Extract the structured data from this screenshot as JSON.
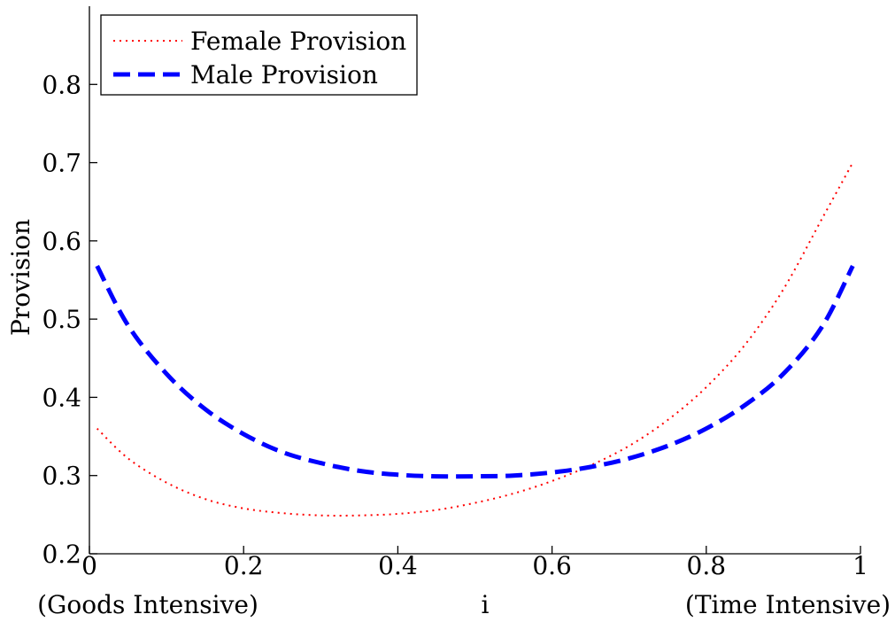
{
  "chart_data": {
    "type": "line",
    "title": "",
    "xlabel": "i",
    "ylabel": "Provision",
    "x_end_labels": {
      "left": "(Goods Intensive)",
      "right": "(Time Intensive)"
    },
    "xlim": [
      0,
      1
    ],
    "ylim": [
      0.2,
      0.9
    ],
    "xticks": [
      "0",
      "0.2",
      "0.4",
      "0.6",
      "0.8",
      "1"
    ],
    "yticks": [
      "0.2",
      "0.3",
      "0.4",
      "0.5",
      "0.6",
      "0.7",
      "0.8"
    ],
    "grid": false,
    "legend_position": "top-left",
    "x": [
      0.01,
      0.05,
      0.1,
      0.15,
      0.2,
      0.25,
      0.3,
      0.35,
      0.4,
      0.45,
      0.5,
      0.55,
      0.6,
      0.65,
      0.7,
      0.75,
      0.8,
      0.85,
      0.9,
      0.95,
      0.99
    ],
    "series": [
      {
        "name": "Female Provision",
        "color": "#ff0000",
        "style": "dotted",
        "values": [
          0.36,
          0.322,
          0.291,
          0.27,
          0.258,
          0.252,
          0.249,
          0.249,
          0.251,
          0.256,
          0.265,
          0.277,
          0.293,
          0.313,
          0.338,
          0.371,
          0.413,
          0.467,
          0.538,
          0.628,
          0.7
        ]
      },
      {
        "name": "Male Provision",
        "color": "#0000ff",
        "style": "dashed",
        "values": [
          0.568,
          0.492,
          0.43,
          0.385,
          0.353,
          0.33,
          0.316,
          0.306,
          0.301,
          0.299,
          0.299,
          0.3,
          0.304,
          0.311,
          0.322,
          0.338,
          0.36,
          0.39,
          0.43,
          0.49,
          0.568
        ]
      }
    ]
  }
}
